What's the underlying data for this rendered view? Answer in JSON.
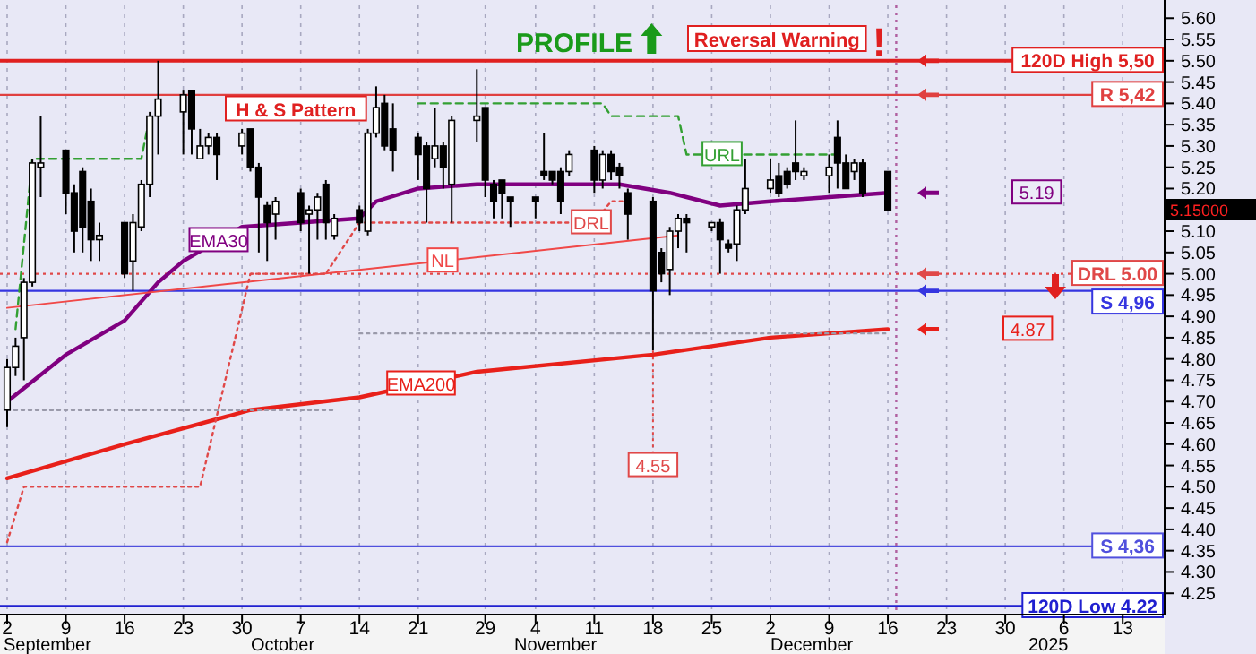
{
  "chart_data": {
    "type": "candlestick",
    "x": [
      "2024-09-02",
      "2024-09-03",
      "2024-09-04",
      "2024-09-05",
      "2024-09-06",
      "2024-09-09",
      "2024-09-10",
      "2024-09-11",
      "2024-09-12",
      "2024-09-13",
      "2024-09-16",
      "2024-09-17",
      "2024-09-18",
      "2024-09-19",
      "2024-09-20",
      "2024-09-23",
      "2024-09-24",
      "2024-09-25",
      "2024-09-26",
      "2024-09-27",
      "2024-09-30",
      "2024-10-01",
      "2024-10-02",
      "2024-10-03",
      "2024-10-04",
      "2024-10-07",
      "2024-10-08",
      "2024-10-09",
      "2024-10-10",
      "2024-10-11",
      "2024-10-14",
      "2024-10-15",
      "2024-10-16",
      "2024-10-17",
      "2024-10-18",
      "2024-10-21",
      "2024-10-22",
      "2024-10-23",
      "2024-10-24",
      "2024-10-25",
      "2024-10-28",
      "2024-10-29",
      "2024-10-30",
      "2024-10-31",
      "2024-11-01",
      "2024-11-04",
      "2024-11-05",
      "2024-11-06",
      "2024-11-07",
      "2024-11-08",
      "2024-11-11",
      "2024-11-12",
      "2024-11-13",
      "2024-11-14",
      "2024-11-15",
      "2024-11-18",
      "2024-11-19",
      "2024-11-20",
      "2024-11-21",
      "2024-11-22",
      "2024-11-25",
      "2024-11-26",
      "2024-11-27",
      "2024-11-28",
      "2024-11-29",
      "2024-12-02",
      "2024-12-03",
      "2024-12-04",
      "2024-12-05",
      "2024-12-06",
      "2024-12-09",
      "2024-12-10",
      "2024-12-11",
      "2024-12-12",
      "2024-12-13",
      "2024-12-16"
    ],
    "ohlc": [
      [
        4.68,
        4.8,
        4.64,
        4.78
      ],
      [
        4.78,
        4.85,
        4.76,
        4.83
      ],
      [
        4.85,
        4.99,
        4.75,
        4.98
      ],
      [
        4.98,
        5.27,
        4.97,
        5.26
      ],
      [
        5.25,
        5.37,
        5.18,
        5.26
      ],
      [
        5.29,
        5.29,
        5.14,
        5.19
      ],
      [
        5.19,
        5.21,
        5.05,
        5.1
      ],
      [
        5.24,
        5.25,
        5.05,
        5.11
      ],
      [
        5.17,
        5.2,
        5.03,
        5.08
      ],
      [
        5.08,
        5.12,
        5.03,
        5.09
      ],
      [
        5.12,
        5.12,
        4.99,
        5.0
      ],
      [
        5.03,
        5.14,
        4.96,
        5.12
      ],
      [
        5.11,
        5.22,
        5.1,
        5.21
      ],
      [
        5.21,
        5.38,
        5.18,
        5.37
      ],
      [
        5.37,
        5.5,
        5.28,
        5.41
      ],
      [
        5.38,
        5.43,
        5.28,
        5.42
      ],
      [
        5.43,
        5.43,
        5.28,
        5.34
      ],
      [
        5.27,
        5.34,
        5.27,
        5.3
      ],
      [
        5.3,
        5.33,
        5.28,
        5.32
      ],
      [
        5.32,
        5.33,
        5.22,
        5.28
      ],
      [
        5.3,
        5.34,
        5.28,
        5.33
      ],
      [
        5.34,
        5.34,
        5.24,
        5.25
      ],
      [
        5.25,
        5.26,
        5.05,
        5.18
      ],
      [
        5.16,
        5.17,
        5.03,
        5.12
      ],
      [
        5.14,
        5.18,
        5.08,
        5.17
      ],
      [
        5.19,
        5.2,
        5.1,
        5.12
      ],
      [
        5.14,
        5.16,
        5.0,
        5.15
      ],
      [
        5.15,
        5.19,
        5.08,
        5.18
      ],
      [
        5.21,
        5.22,
        5.08,
        5.12
      ],
      [
        5.09,
        5.14,
        5.08,
        5.13
      ],
      [
        5.15,
        5.16,
        5.1,
        5.12
      ],
      [
        5.1,
        5.34,
        5.09,
        5.33
      ],
      [
        5.33,
        5.44,
        5.32,
        5.39
      ],
      [
        5.4,
        5.42,
        5.29,
        5.3
      ],
      [
        5.34,
        5.4,
        5.24,
        5.29
      ],
      [
        5.32,
        5.33,
        5.22,
        5.28
      ],
      [
        5.3,
        5.31,
        5.12,
        5.2
      ],
      [
        5.27,
        5.39,
        5.25,
        5.3
      ],
      [
        5.3,
        5.31,
        5.2,
        5.25
      ],
      [
        5.21,
        5.37,
        5.12,
        5.36
      ],
      [
        5.36,
        5.48,
        5.31,
        5.37
      ],
      [
        5.39,
        5.39,
        5.18,
        5.22
      ],
      [
        5.21,
        5.22,
        5.13,
        5.17
      ],
      [
        5.22,
        5.22,
        5.13,
        5.19
      ],
      [
        5.18,
        5.18,
        5.11,
        5.17
      ],
      [
        5.18,
        5.18,
        5.13,
        5.17
      ],
      [
        5.24,
        5.33,
        5.22,
        5.23
      ],
      [
        5.24,
        5.24,
        5.21,
        5.22
      ],
      [
        5.24,
        5.25,
        5.14,
        5.17
      ],
      [
        5.24,
        5.29,
        5.23,
        5.28
      ],
      [
        5.29,
        5.3,
        5.19,
        5.22
      ],
      [
        5.22,
        5.29,
        5.2,
        5.28
      ],
      [
        5.28,
        5.29,
        5.22,
        5.24
      ],
      [
        5.25,
        5.26,
        5.2,
        5.23
      ],
      [
        5.19,
        5.2,
        5.08,
        5.14
      ],
      [
        5.17,
        5.18,
        4.82,
        4.96
      ],
      [
        5.05,
        5.06,
        4.98,
        5.0
      ],
      [
        5.01,
        5.11,
        4.95,
        5.1
      ],
      [
        5.1,
        5.14,
        5.06,
        5.13
      ],
      [
        5.13,
        5.14,
        5.05,
        5.12
      ],
      [
        5.11,
        5.12,
        5.1,
        5.12
      ],
      [
        5.12,
        5.13,
        5.0,
        5.08
      ],
      [
        5.07,
        5.08,
        5.05,
        5.06
      ],
      [
        5.07,
        5.16,
        5.03,
        5.15
      ],
      [
        5.15,
        5.27,
        5.14,
        5.2
      ],
      [
        5.2,
        5.27,
        5.19,
        5.22
      ],
      [
        5.23,
        5.26,
        5.18,
        5.19
      ],
      [
        5.24,
        5.25,
        5.2,
        5.21
      ],
      [
        5.26,
        5.36,
        5.22,
        5.24
      ],
      [
        5.23,
        5.25,
        5.22,
        5.24
      ],
      [
        5.23,
        5.28,
        5.19,
        5.25
      ],
      [
        5.32,
        5.36,
        5.2,
        5.26
      ],
      [
        5.26,
        5.28,
        5.2,
        5.2
      ],
      [
        5.24,
        5.27,
        5.22,
        5.26
      ],
      [
        5.26,
        5.27,
        5.18,
        5.19
      ],
      [
        5.24,
        5.24,
        5.15,
        5.15
      ]
    ],
    "series": [
      {
        "name": "EMA30",
        "type": "line",
        "color": "#800080",
        "x": [
          "2024-09-02",
          "2024-09-09",
          "2024-09-16",
          "2024-09-20",
          "2024-09-23",
          "2024-09-30",
          "2024-10-07",
          "2024-10-14",
          "2024-10-16",
          "2024-10-21",
          "2024-10-28",
          "2024-11-11",
          "2024-11-14",
          "2024-11-20",
          "2024-11-26",
          "2024-12-02",
          "2024-12-09",
          "2024-12-16"
        ],
        "values": [
          4.7,
          4.81,
          4.89,
          4.98,
          5.03,
          5.11,
          5.12,
          5.13,
          5.17,
          5.2,
          5.21,
          5.21,
          5.21,
          5.19,
          5.16,
          5.17,
          5.18,
          5.19
        ]
      },
      {
        "name": "EMA200",
        "type": "line",
        "color": "#e8201a",
        "x": [
          "2024-09-02",
          "2024-09-16",
          "2024-10-01",
          "2024-10-14",
          "2024-10-28",
          "2024-11-18",
          "2024-12-02",
          "2024-12-16"
        ],
        "values": [
          4.52,
          4.6,
          4.68,
          4.71,
          4.77,
          4.81,
          4.85,
          4.87
        ]
      },
      {
        "name": "NL",
        "type": "line",
        "color": "#f04848",
        "x": [
          "2024-09-02",
          "2024-11-21"
        ],
        "values": [
          4.92,
          5.09
        ]
      },
      {
        "name": "DRL",
        "type": "line",
        "color": "#e04848",
        "line_style": "dotted",
        "x": [
          "2024-09-02",
          "2024-09-04",
          "2024-09-25",
          "2024-10-01",
          "2024-10-10",
          "2024-10-14",
          "2024-11-11",
          "2024-11-13",
          "2024-11-15"
        ],
        "values": [
          4.37,
          4.5,
          4.5,
          5.0,
          5.0,
          5.12,
          5.12,
          5.17,
          5.17
        ]
      },
      {
        "name": "URL",
        "type": "line",
        "color": "#33a033",
        "line_style": "dashed",
        "x": [
          "2024-09-03",
          "2024-09-05",
          "2024-09-18",
          "2024-09-19",
          "2024-10-01",
          "2024-10-21",
          "2024-11-12",
          "2024-11-13",
          "2024-11-21",
          "2024-11-22",
          "2024-12-10"
        ],
        "values": [
          4.87,
          5.27,
          5.27,
          5.37,
          null,
          5.4,
          5.4,
          5.37,
          5.37,
          5.28,
          5.28
        ]
      },
      {
        "type": "line",
        "color": "#9a9aaa",
        "line_style": "dotted",
        "x": [
          "2024-09-02",
          "2024-10-11",
          "2024-10-12",
          "2024-10-14",
          "2024-12-16"
        ],
        "values": [
          4.68,
          4.68,
          null,
          4.86,
          4.86
        ]
      }
    ],
    "xlim": [
      "2024-09-02",
      "2025-01-18"
    ],
    "xticks": [
      {
        "value": "2024-09-02",
        "label": "2"
      },
      {
        "value": "2024-09-09",
        "label": "9"
      },
      {
        "value": "2024-09-16",
        "label": "16"
      },
      {
        "value": "2024-09-23",
        "label": "23"
      },
      {
        "value": "2024-09-30",
        "label": "30"
      },
      {
        "value": "2024-10-07",
        "label": "7"
      },
      {
        "value": "2024-10-14",
        "label": "14"
      },
      {
        "value": "2024-10-21",
        "label": "21"
      },
      {
        "value": "2024-10-29",
        "label": "29"
      },
      {
        "value": "2024-11-04",
        "label": "4"
      },
      {
        "value": "2024-11-11",
        "label": "11"
      },
      {
        "value": "2024-11-18",
        "label": "18"
      },
      {
        "value": "2024-11-25",
        "label": "25"
      },
      {
        "value": "2024-12-02",
        "label": "2"
      },
      {
        "value": "2024-12-09",
        "label": "9"
      },
      {
        "value": "2024-12-16",
        "label": "16"
      },
      {
        "value": "2024-12-23",
        "label": "23"
      },
      {
        "value": "2024-12-30",
        "label": "30"
      },
      {
        "value": "2025-01-06",
        "label": "6"
      },
      {
        "value": "2025-01-13",
        "label": "13"
      }
    ],
    "ylim": [
      4.2,
      5.63
    ],
    "yticks": [
      {
        "value": 4.25,
        "label": "4.25"
      },
      {
        "value": 4.3,
        "label": "4.30"
      },
      {
        "value": 4.35,
        "label": "4.35"
      },
      {
        "value": 4.4,
        "label": "4.40"
      },
      {
        "value": 4.45,
        "label": "4.45"
      },
      {
        "value": 4.5,
        "label": "4.50"
      },
      {
        "value": 4.55,
        "label": "4.55"
      },
      {
        "value": 4.6,
        "label": "4.60"
      },
      {
        "value": 4.65,
        "label": "4.65"
      },
      {
        "value": 4.7,
        "label": "4.70"
      },
      {
        "value": 4.75,
        "label": "4.75"
      },
      {
        "value": 4.8,
        "label": "4.80"
      },
      {
        "value": 4.85,
        "label": "4.85"
      },
      {
        "value": 4.9,
        "label": "4.90"
      },
      {
        "value": 4.95,
        "label": "4.95"
      },
      {
        "value": 5.0,
        "label": "5.00"
      },
      {
        "value": 5.05,
        "label": "5.05"
      },
      {
        "value": 5.1,
        "label": "5.10"
      },
      {
        "value": 5.15,
        "label": null
      },
      {
        "value": 5.2,
        "label": "5.20"
      },
      {
        "value": 5.25,
        "label": "5.25"
      },
      {
        "value": 5.3,
        "label": "5.30"
      },
      {
        "value": 5.35,
        "label": "5.35"
      },
      {
        "value": 5.4,
        "label": "5.40"
      },
      {
        "value": 5.45,
        "label": "5.45"
      },
      {
        "value": 5.5,
        "label": "5.50"
      },
      {
        "value": 5.55,
        "label": "5.55"
      },
      {
        "value": 5.6,
        "label": "5.60"
      }
    ],
    "grid": "x",
    "ref_lines": [
      {
        "axis": "y",
        "value": 5.5,
        "label": "120D High 5,50",
        "color": "#e02020"
      },
      {
        "axis": "y",
        "value": 5.42,
        "label": "R 5,42",
        "color": "#e04040"
      },
      {
        "axis": "y",
        "value": 5.0,
        "label": "DRL 5.00",
        "color": "#e04848",
        "line_style": "dotted"
      },
      {
        "axis": "y",
        "value": 4.96,
        "label": "S 4,96",
        "color": "#3535e0"
      },
      {
        "axis": "y",
        "value": 4.36,
        "label": "S 4,36",
        "color": "#5050dd"
      },
      {
        "axis": "y",
        "value": 4.22,
        "label": "120D Low 4.22",
        "color": "#2020d0"
      },
      {
        "axis": "x",
        "value": "2024-12-17",
        "label": null,
        "color": "#b060a0",
        "line_style": "dotted"
      }
    ],
    "annotations": [
      "PROFILE",
      "Reversal Warning",
      "!",
      "H & S Pattern",
      "5.15000",
      {
        "text": "5.19",
        "y": 5.19
      },
      {
        "text": "4.87",
        "y": 4.87
      },
      {
        "text": "4.55",
        "x": "2024-11-18",
        "y": 4.55
      },
      "September",
      "October",
      "November",
      "December",
      "2025"
    ]
  }
}
